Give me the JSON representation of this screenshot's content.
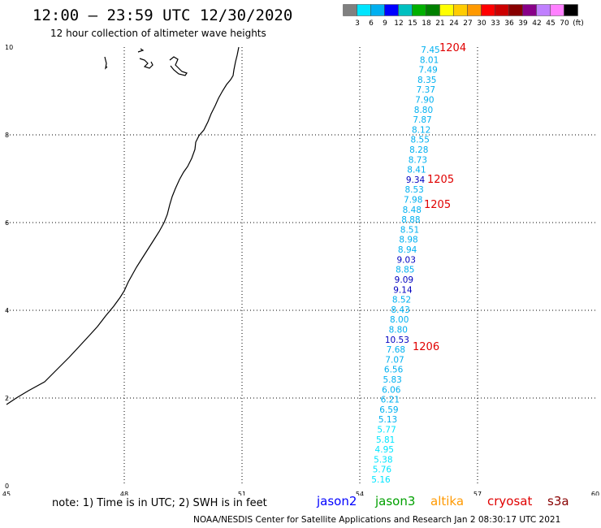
{
  "header": {
    "title": "12:00 – 23:59 UTC 12/30/2020",
    "subtitle": "12 hour collection of altimeter wave heights"
  },
  "legend": {
    "labels": [
      "3",
      "6",
      "9",
      "12",
      "15",
      "18",
      "21",
      "24",
      "27",
      "30",
      "33",
      "36",
      "39",
      "42",
      "45",
      "70",
      "(ft)"
    ],
    "colors": [
      "#808080",
      "#00e5ff",
      "#00b0f0",
      "#0000ff",
      "#00c0c0",
      "#00b000",
      "#008000",
      "#ffff00",
      "#ffcc00",
      "#ff9900",
      "#ff0000",
      "#cc0000",
      "#880000",
      "#880088",
      "#c080ff",
      "#ff80ff",
      "#000000"
    ]
  },
  "map": {
    "x_ticks": [
      "45",
      "48",
      "51",
      "54",
      "57",
      "60"
    ],
    "y_ticks": [
      "0",
      "2",
      "4",
      "6",
      "8",
      "10"
    ],
    "x_range": [
      45,
      60
    ],
    "y_range": [
      0,
      10
    ]
  },
  "measurements": [
    {
      "v": "7.45",
      "c": "#00b0f0"
    },
    {
      "v": "8.01",
      "c": "#00b0f0"
    },
    {
      "v": "7.49",
      "c": "#00b0f0"
    },
    {
      "v": "8.35",
      "c": "#00b0f0"
    },
    {
      "v": "7.37",
      "c": "#00b0f0"
    },
    {
      "v": "7.90",
      "c": "#00b0f0"
    },
    {
      "v": "8.80",
      "c": "#00b0f0"
    },
    {
      "v": "7.87",
      "c": "#00b0f0"
    },
    {
      "v": "8.12",
      "c": "#00b0f0"
    },
    {
      "v": "8.55",
      "c": "#00b0f0"
    },
    {
      "v": "8.28",
      "c": "#00b0f0"
    },
    {
      "v": "8.73",
      "c": "#00b0f0"
    },
    {
      "v": "8.41",
      "c": "#00b0f0"
    },
    {
      "v": "9.34",
      "c": "#0000c0"
    },
    {
      "v": "8.53",
      "c": "#00b0f0"
    },
    {
      "v": "7.98",
      "c": "#00b0f0"
    },
    {
      "v": "8.48",
      "c": "#00b0f0"
    },
    {
      "v": "8.88",
      "c": "#00b0f0"
    },
    {
      "v": "8.51",
      "c": "#00b0f0"
    },
    {
      "v": "8.98",
      "c": "#00b0f0"
    },
    {
      "v": "8.94",
      "c": "#00b0f0"
    },
    {
      "v": "9.03",
      "c": "#0000c0"
    },
    {
      "v": "8.85",
      "c": "#00b0f0"
    },
    {
      "v": "9.09",
      "c": "#0000c0"
    },
    {
      "v": "9.14",
      "c": "#0000c0"
    },
    {
      "v": "8.52",
      "c": "#00b0f0"
    },
    {
      "v": "8.43",
      "c": "#00b0f0"
    },
    {
      "v": "8.00",
      "c": "#00b0f0"
    },
    {
      "v": "8.80",
      "c": "#00b0f0"
    },
    {
      "v": "10.53",
      "c": "#0000c0"
    },
    {
      "v": "7.68",
      "c": "#00b0f0"
    },
    {
      "v": "7.07",
      "c": "#00b0f0"
    },
    {
      "v": "6.56",
      "c": "#00b0f0"
    },
    {
      "v": "5.83",
      "c": "#00b0f0"
    },
    {
      "v": "6.06",
      "c": "#00b0f0"
    },
    {
      "v": "6.21",
      "c": "#00b0f0"
    },
    {
      "v": "6.59",
      "c": "#00b0f0"
    },
    {
      "v": "5.13",
      "c": "#00b0f0"
    },
    {
      "v": "5.77",
      "c": "#00e5ff"
    },
    {
      "v": "5.81",
      "c": "#00e5ff"
    },
    {
      "v": "4.95",
      "c": "#00e5ff"
    },
    {
      "v": "5.38",
      "c": "#00e5ff"
    },
    {
      "v": "5.76",
      "c": "#00e5ff"
    },
    {
      "v": "5.16",
      "c": "#00e5ff"
    }
  ],
  "time_labels": [
    "1204",
    "1205",
    "1205",
    "1206"
  ],
  "note": "note:  1) Time is in UTC;  2) SWH is in feet",
  "satellites": [
    {
      "name": "jason2",
      "color": "#0000ff"
    },
    {
      "name": "jason3",
      "color": "#00a000"
    },
    {
      "name": "altika",
      "color": "#ff9900"
    },
    {
      "name": "cryosat",
      "color": "#e00000"
    },
    {
      "name": "s3a",
      "color": "#880000"
    }
  ],
  "footer": "NOAA/NESDIS Center for Satellite Applications and Research    Jan  2 08:30:17 UTC 2021"
}
